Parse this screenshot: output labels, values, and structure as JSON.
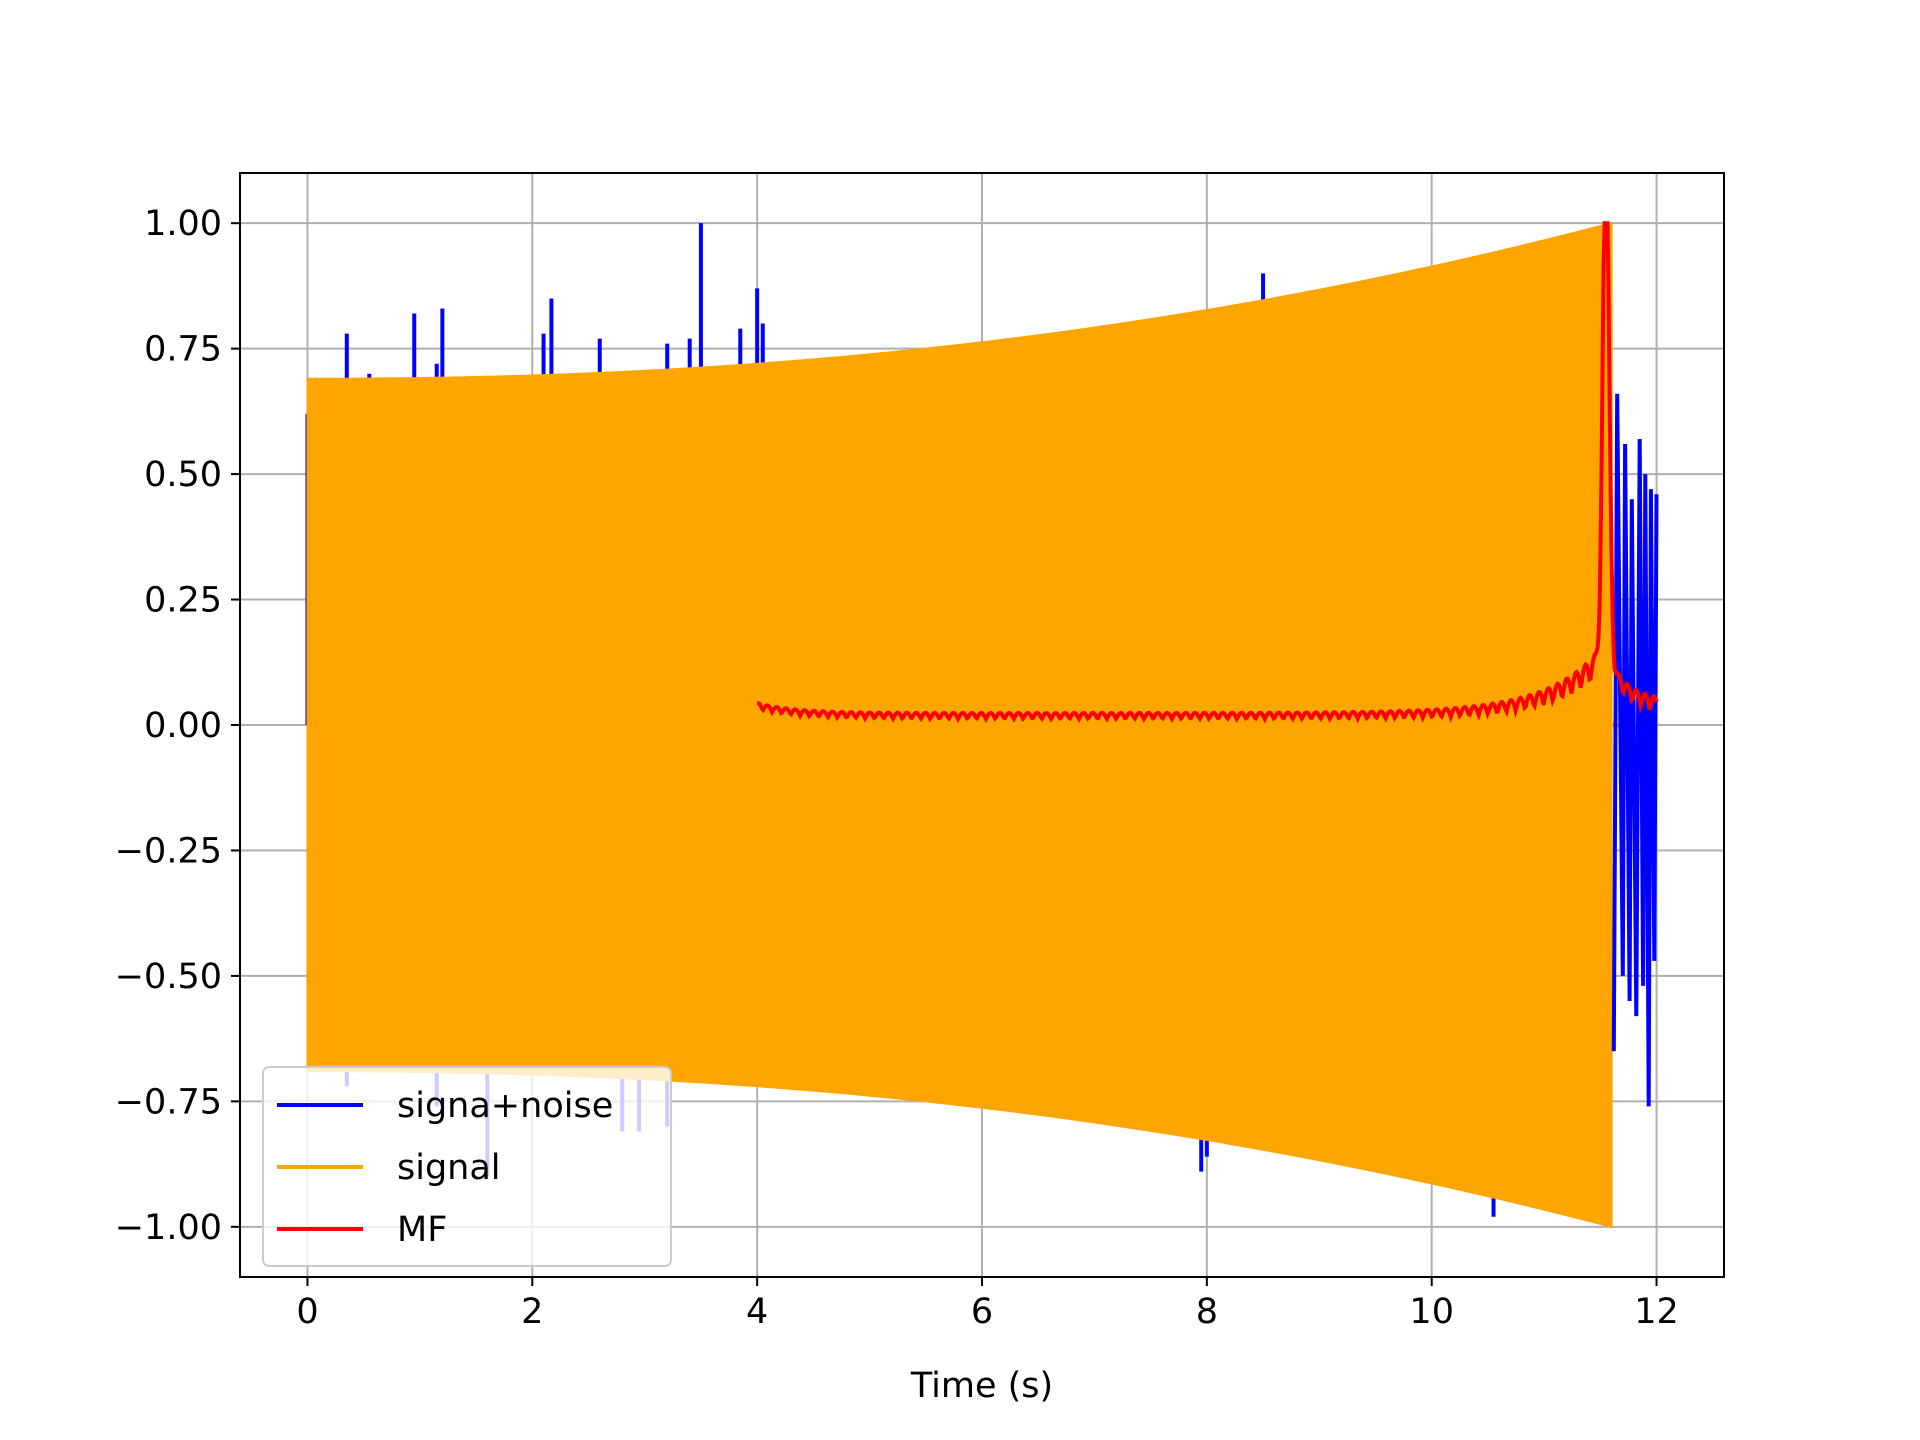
{
  "chart_data": {
    "type": "line",
    "title": "",
    "xlabel": "Time (s)",
    "ylabel": "",
    "xlim": [
      -0.6,
      12.6
    ],
    "ylim": [
      -1.1,
      1.1
    ],
    "xticks": [
      0,
      2,
      4,
      6,
      8,
      10,
      12
    ],
    "xtick_labels": [
      "0",
      "2",
      "4",
      "6",
      "8",
      "10",
      "12"
    ],
    "yticks": [
      1.0,
      0.75,
      0.5,
      0.25,
      0.0,
      -0.25,
      -0.5,
      -0.75,
      -1.0
    ],
    "ytick_labels": [
      "1.00",
      "0.75",
      "0.50",
      "0.25",
      "0.00",
      "−0.25",
      "−0.50",
      "−0.75",
      "−1.00"
    ],
    "grid": true,
    "legend_position": "lower-left",
    "series": [
      {
        "name": "signa+noise",
        "color": "#0000ff",
        "spikes": [
          [
            0.0,
            0.62
          ],
          [
            0.35,
            0.78
          ],
          [
            0.55,
            0.7
          ],
          [
            0.95,
            0.82
          ],
          [
            1.15,
            0.72
          ],
          [
            1.2,
            0.83
          ],
          [
            2.1,
            0.78
          ],
          [
            2.17,
            0.85
          ],
          [
            2.6,
            0.77
          ],
          [
            3.2,
            0.76
          ],
          [
            3.4,
            0.77
          ],
          [
            3.5,
            1.0
          ],
          [
            3.85,
            0.79
          ],
          [
            4.0,
            0.87
          ],
          [
            4.05,
            0.8
          ],
          [
            8.5,
            0.9
          ],
          [
            0.35,
            -0.72
          ],
          [
            1.15,
            -0.76
          ],
          [
            1.6,
            -0.9
          ],
          [
            2.8,
            -0.81
          ],
          [
            2.95,
            -0.81
          ],
          [
            3.2,
            -0.8
          ],
          [
            7.95,
            -0.89
          ],
          [
            8.0,
            -0.86
          ],
          [
            10.55,
            -0.98
          ]
        ],
        "tail": [
          [
            11.62,
            -0.65
          ],
          [
            11.65,
            0.66
          ],
          [
            11.7,
            -0.5
          ],
          [
            11.72,
            0.56
          ],
          [
            11.76,
            -0.55
          ],
          [
            11.78,
            0.45
          ],
          [
            11.82,
            -0.58
          ],
          [
            11.85,
            0.57
          ],
          [
            11.88,
            -0.52
          ],
          [
            11.9,
            0.5
          ],
          [
            11.93,
            -0.76
          ],
          [
            11.95,
            0.47
          ],
          [
            11.98,
            -0.47
          ],
          [
            12.0,
            0.46
          ]
        ]
      },
      {
        "name": "signal",
        "color": "#ffa500",
        "amplitude_start": 0.69,
        "amplitude_end": 1.0,
        "t_start": 0.0,
        "t_end": 11.6
      },
      {
        "name": "MF",
        "color": "#ff0000",
        "t_start": 4.0,
        "t_end": 12.0,
        "peak_time": 11.55,
        "peak_value": 1.0
      }
    ]
  }
}
